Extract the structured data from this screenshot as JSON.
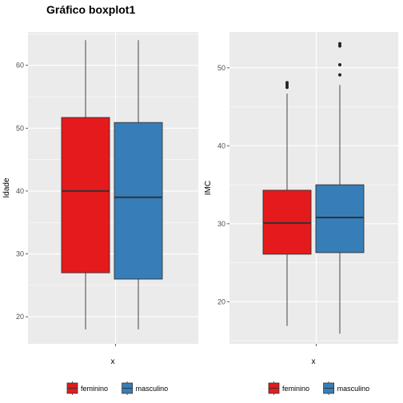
{
  "title": "Gráfico boxplot1",
  "colors": {
    "panel_bg": "#ebebeb",
    "grid": "#ffffff",
    "feminino": "#e41a1c",
    "masculino": "#377eb8",
    "median": "#333333",
    "outline": "#333333"
  },
  "chart_data": [
    {
      "type": "boxplot",
      "xlabel": "x",
      "ylabel": "Idade",
      "xtick": "",
      "ylim": [
        15.7,
        65.3
      ],
      "yticks": [
        20,
        30,
        40,
        50,
        60
      ],
      "grid": true,
      "legend": "bottom",
      "series": [
        {
          "name": "feminino",
          "min": 18,
          "q1": 27,
          "median": 40,
          "q3": 51.7,
          "max": 64,
          "outliers": []
        },
        {
          "name": "masculino",
          "min": 18,
          "q1": 26,
          "median": 39,
          "q3": 50.9,
          "max": 64,
          "outliers": []
        }
      ]
    },
    {
      "type": "boxplot",
      "xlabel": "x",
      "ylabel": "IMC",
      "xtick": "",
      "ylim": [
        14.6,
        54.6
      ],
      "yticks": [
        20,
        30,
        40,
        50
      ],
      "grid": true,
      "legend": "bottom",
      "series": [
        {
          "name": "feminino",
          "min": 16.9,
          "q1": 26.1,
          "median": 30.1,
          "q3": 34.3,
          "max": 46.7,
          "outliers": [
            47.5,
            47.8,
            48.1
          ]
        },
        {
          "name": "masculino",
          "min": 15.9,
          "q1": 26.3,
          "median": 30.8,
          "q3": 35.0,
          "max": 47.8,
          "outliers": [
            49.1,
            50.4,
            52.8,
            53.1
          ]
        }
      ]
    }
  ]
}
